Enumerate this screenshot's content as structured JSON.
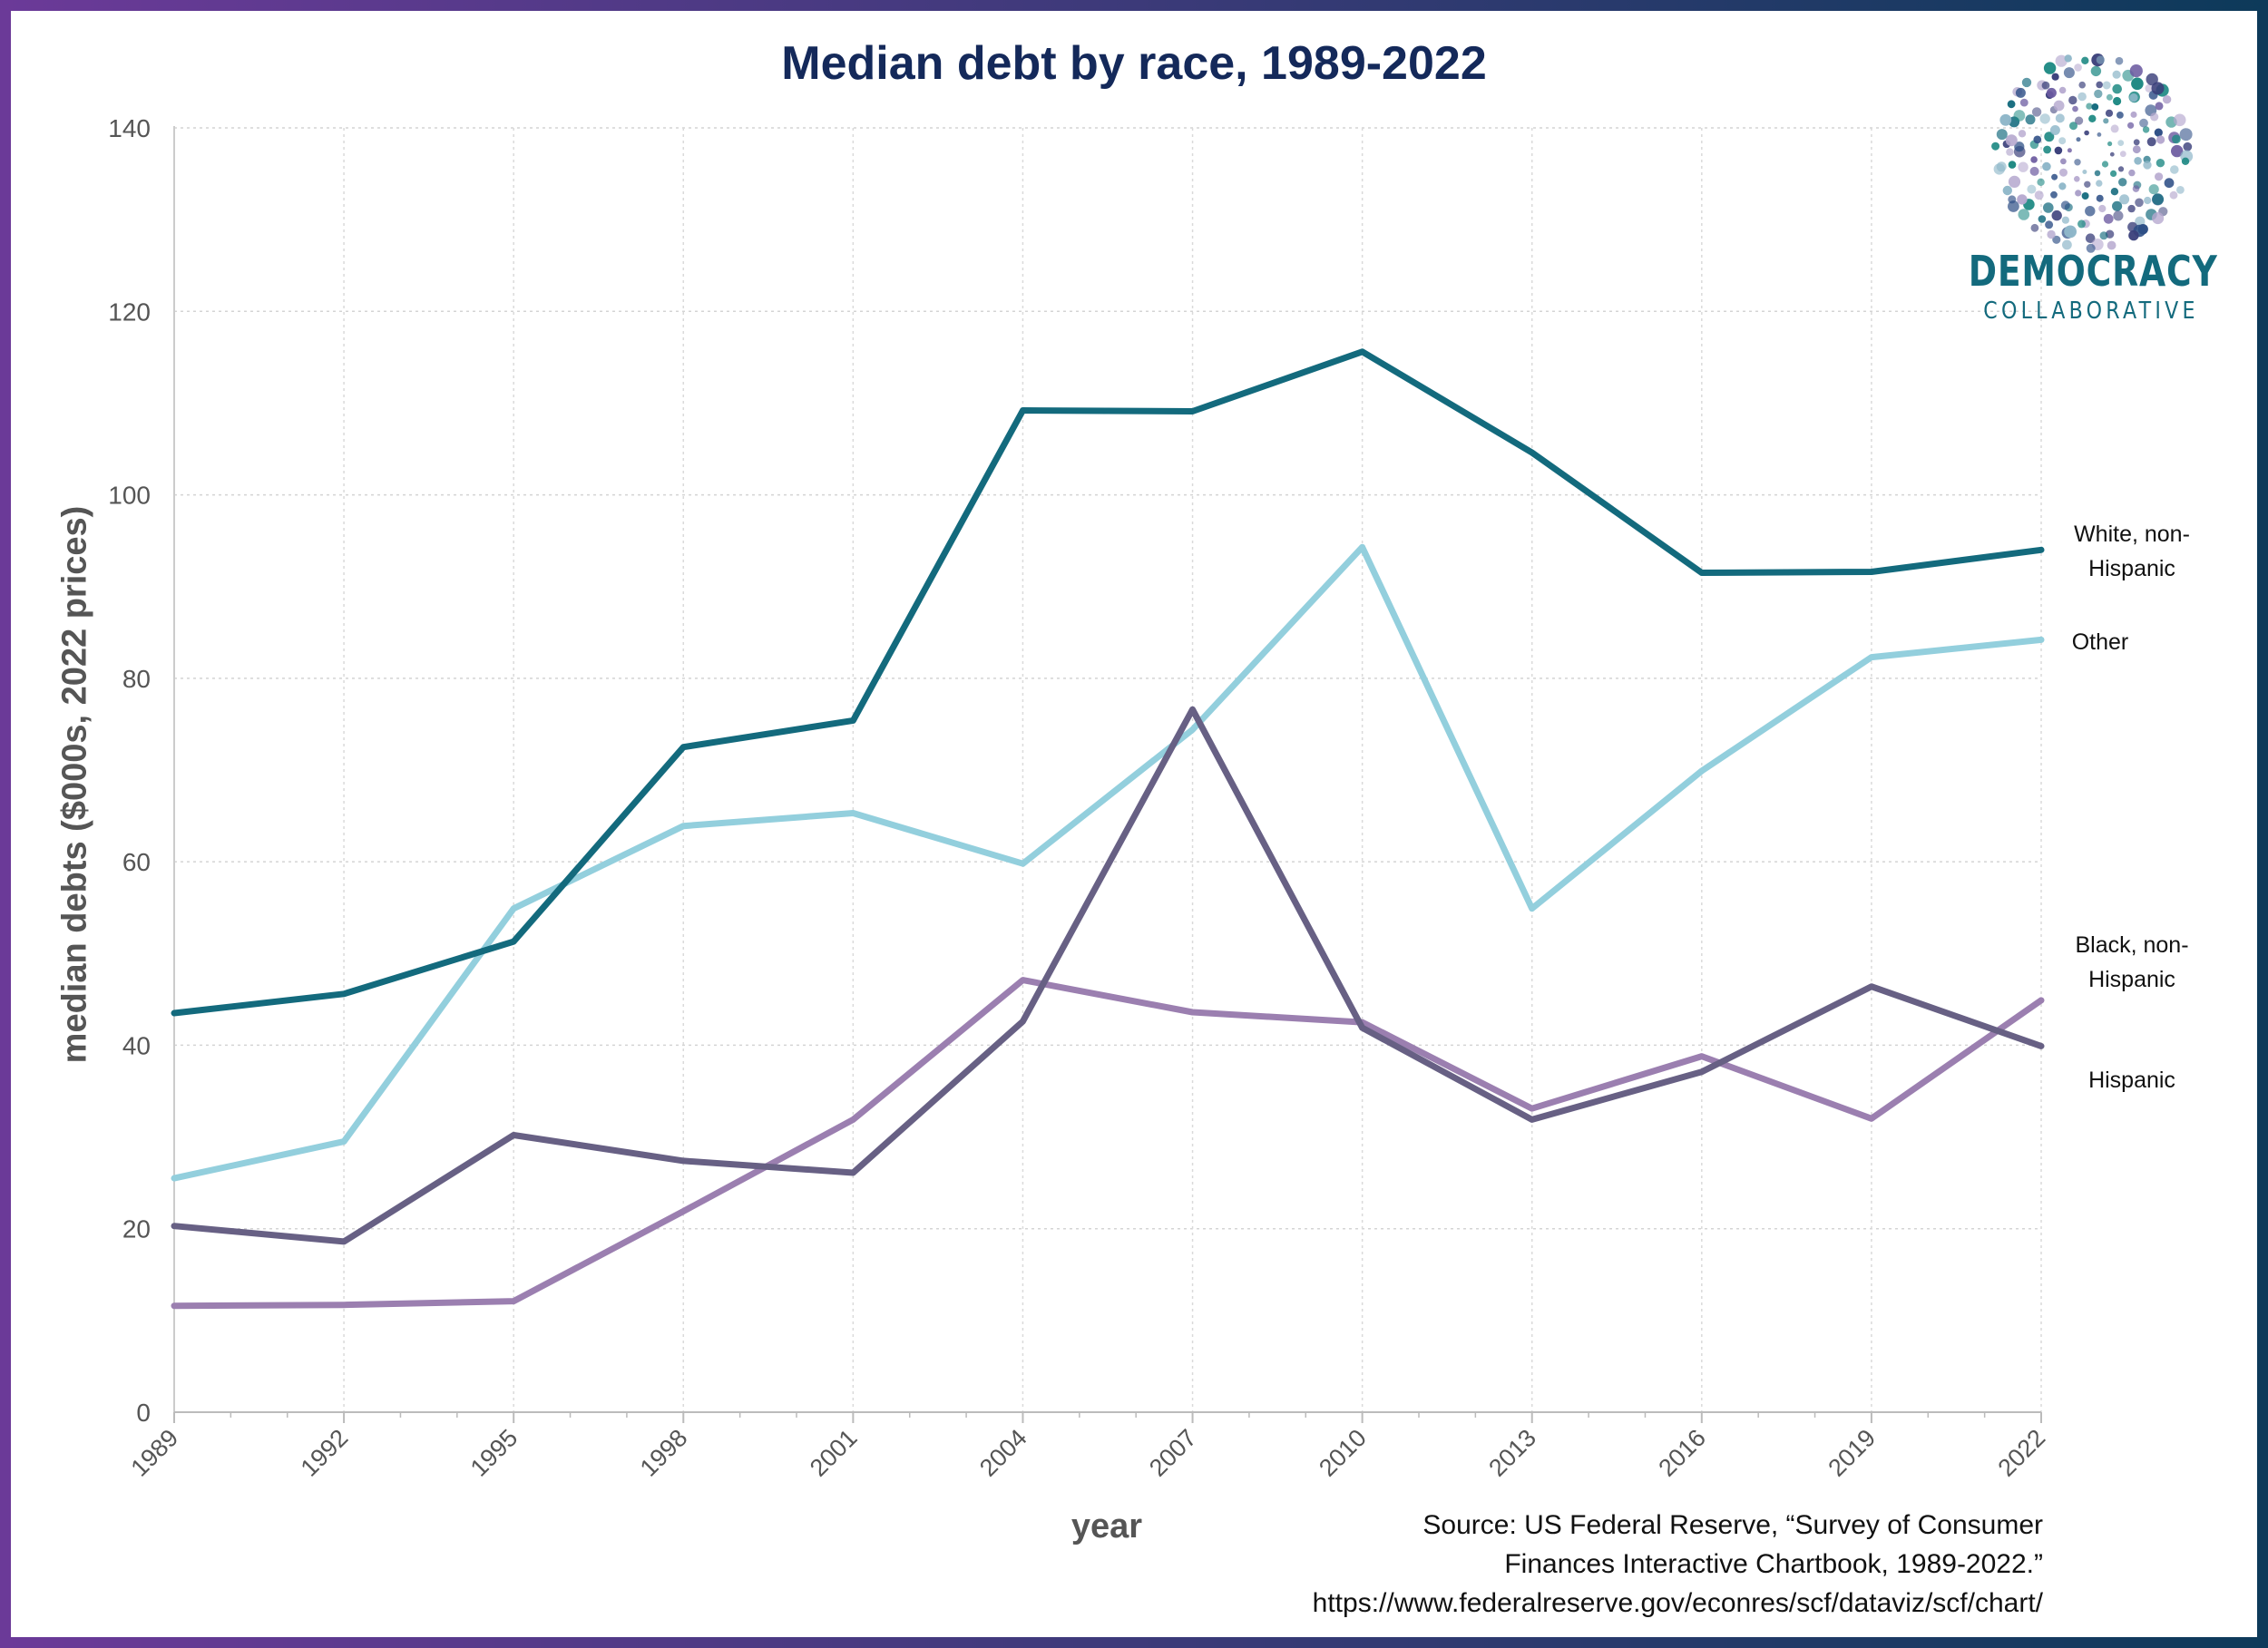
{
  "title": "Median debt by race, 1989-2022",
  "logo": {
    "main": "DEMOCRACY",
    "sub": "COLLABORATIVE"
  },
  "source": {
    "line1": "Source: US Federal Reserve, “Survey of Consumer",
    "line2": "Finances Interactive Chartbook, 1989-2022.”",
    "line3": "https://www.federalreserve.gov/econres/scf/dataviz/scf/chart/"
  },
  "labels": {
    "white_1": "White, non-",
    "white_2": "Hispanic",
    "other": "Other",
    "black_1": "Black, non-",
    "black_2": "Hispanic",
    "hispanic": "Hispanic"
  },
  "colors": {
    "white": "#136a7d",
    "other": "#93cfdd",
    "black": "#676084",
    "hispanic": "#9b7fb0",
    "frame_left": "#6b3a98",
    "frame_right": "#0d3a5a"
  },
  "chart_data": {
    "type": "line",
    "x": [
      1989,
      1992,
      1995,
      1998,
      2001,
      2004,
      2007,
      2010,
      2013,
      2016,
      2019,
      2022
    ],
    "xlabel": "year",
    "ylabel": "median debts ($000s, 2022 prices)",
    "ylim": [
      0,
      140
    ],
    "yticks": [
      0,
      20,
      40,
      60,
      80,
      100,
      120,
      140
    ],
    "grid": true,
    "series": [
      {
        "key": "white",
        "name": "White, non-Hispanic",
        "values": [
          43.5,
          45.6,
          51.3,
          72.5,
          75.4,
          109.2,
          109.1,
          115.6,
          104.6,
          91.5,
          91.6,
          94.0
        ]
      },
      {
        "key": "other",
        "name": "Other",
        "values": [
          25.5,
          29.5,
          54.9,
          63.9,
          65.3,
          59.8,
          74.4,
          94.3,
          54.9,
          69.9,
          82.3,
          84.2
        ]
      },
      {
        "key": "black",
        "name": "Black, non-Hispanic",
        "values": [
          20.3,
          18.6,
          30.2,
          27.4,
          26.1,
          42.6,
          76.6,
          41.9,
          31.9,
          37.1,
          46.4,
          39.9
        ]
      },
      {
        "key": "hispanic",
        "name": "Hispanic",
        "values": [
          11.6,
          11.7,
          12.1,
          21.9,
          31.9,
          47.1,
          43.6,
          42.5,
          33.1,
          38.8,
          32.0,
          44.9
        ]
      }
    ]
  }
}
